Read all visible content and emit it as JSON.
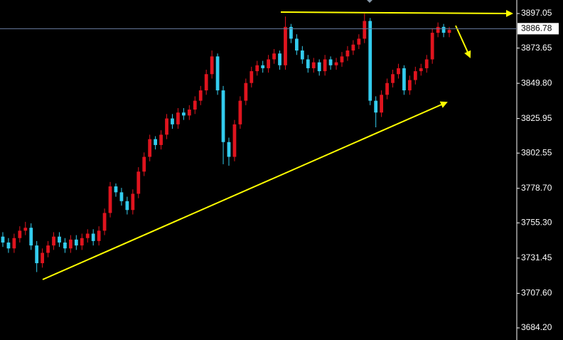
{
  "chart_data": {
    "type": "candlestick",
    "open": [
      3746,
      3742,
      3738,
      3745,
      3750,
      3752,
      3740,
      3728,
      3735,
      3740,
      3746,
      3742,
      3738,
      3744,
      3740,
      3745,
      3748,
      3743,
      3750,
      3762,
      3780,
      3776,
      3770,
      3764,
      3775,
      3790,
      3800,
      3812,
      3808,
      3815,
      3826,
      3822,
      3830,
      3828,
      3832,
      3838,
      3845,
      3856,
      3868,
      3845,
      3810,
      3800,
      3822,
      3838,
      3850,
      3858,
      3862,
      3860,
      3866,
      3870,
      3862,
      3888,
      3880,
      3872,
      3866,
      3860,
      3864,
      3858,
      3866,
      3862,
      3864,
      3868,
      3872,
      3876,
      3880,
      3892,
      3838,
      3830,
      3842,
      3850,
      3856,
      3860,
      3845,
      3852,
      3858,
      3860,
      3866,
      3884,
      3888,
      3884
    ],
    "high": [
      3749,
      3745,
      3748,
      3753,
      3756,
      3755,
      3743,
      3738,
      3743,
      3749,
      3749,
      3745,
      3747,
      3747,
      3748,
      3751,
      3751,
      3753,
      3765,
      3783,
      3782,
      3779,
      3773,
      3778,
      3793,
      3803,
      3815,
      3814,
      3818,
      3829,
      3829,
      3833,
      3833,
      3835,
      3841,
      3848,
      3859,
      3872,
      3870,
      3848,
      3813,
      3825,
      3841,
      3853,
      3861,
      3865,
      3865,
      3869,
      3873,
      3872,
      3895,
      3890,
      3883,
      3875,
      3869,
      3867,
      3866,
      3869,
      3868,
      3867,
      3871,
      3875,
      3879,
      3883,
      3897,
      3894,
      3841,
      3845,
      3853,
      3859,
      3863,
      3862,
      3855,
      3861,
      3863,
      3869,
      3887,
      3891,
      3890,
      3888
    ],
    "low": [
      3739,
      3735,
      3735,
      3742,
      3747,
      3737,
      3722,
      3725,
      3732,
      3737,
      3739,
      3735,
      3735,
      3737,
      3737,
      3742,
      3740,
      3740,
      3747,
      3759,
      3773,
      3767,
      3761,
      3761,
      3772,
      3787,
      3797,
      3805,
      3805,
      3812,
      3819,
      3819,
      3825,
      3825,
      3829,
      3835,
      3842,
      3853,
      3842,
      3795,
      3794,
      3797,
      3819,
      3835,
      3847,
      3855,
      3857,
      3857,
      3863,
      3859,
      3859,
      3877,
      3869,
      3863,
      3857,
      3857,
      3855,
      3855,
      3859,
      3859,
      3861,
      3865,
      3869,
      3873,
      3877,
      3835,
      3820,
      3827,
      3839,
      3847,
      3853,
      3842,
      3842,
      3849,
      3855,
      3857,
      3863,
      3881,
      3881,
      3881
    ],
    "close": [
      3742,
      3738,
      3745,
      3750,
      3752,
      3740,
      3728,
      3735,
      3740,
      3746,
      3742,
      3738,
      3744,
      3740,
      3745,
      3748,
      3743,
      3750,
      3762,
      3780,
      3776,
      3770,
      3764,
      3775,
      3790,
      3800,
      3812,
      3808,
      3815,
      3826,
      3822,
      3830,
      3828,
      3832,
      3838,
      3845,
      3856,
      3868,
      3845,
      3810,
      3800,
      3822,
      3838,
      3850,
      3858,
      3862,
      3860,
      3866,
      3870,
      3862,
      3888,
      3880,
      3872,
      3866,
      3860,
      3864,
      3858,
      3866,
      3862,
      3864,
      3868,
      3872,
      3876,
      3880,
      3892,
      3838,
      3830,
      3842,
      3850,
      3856,
      3860,
      3845,
      3852,
      3858,
      3860,
      3866,
      3884,
      3888,
      3884,
      3886
    ],
    "up_color": "#e0141e",
    "down_color": "#33ccee",
    "ylim": [
      3676.0,
      3906.2
    ],
    "yticks": [
      3897.05,
      3873.65,
      {
        "value": 3849.8,
        "label": "3849.80"
      },
      3825.95,
      3802.55,
      {
        "value": 3778.7,
        "label": "3778.70"
      },
      {
        "value": 3755.3,
        "label": "3755.30"
      },
      3731.45,
      {
        "value": 3707.6,
        "label": "3707.60"
      },
      {
        "value": 3684.2,
        "label": "3684.20"
      }
    ],
    "last_price": 3886.78
  }
}
